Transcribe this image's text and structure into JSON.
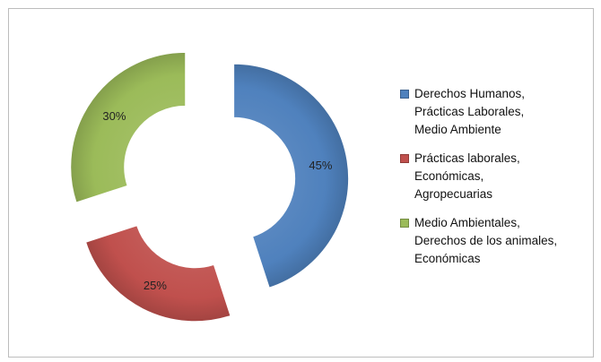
{
  "chart_data": {
    "type": "pie",
    "variant": "exploded-doughnut",
    "legend_position": "right",
    "slices": [
      {
        "label_lines": [
          "Derechos Humanos,",
          "Prácticas Laborales,",
          "Medio Ambiente"
        ],
        "value": 45,
        "value_label": "45%",
        "color": "#4F81BD"
      },
      {
        "label_lines": [
          "Prácticas laborales,",
          "Económicas,",
          "Agropecuarias"
        ],
        "value": 25,
        "value_label": "25%",
        "color": "#C0504D"
      },
      {
        "label_lines": [
          "Medio Ambientales,",
          "Derechos de los animales,",
          "Económicas"
        ],
        "value": 30,
        "value_label": "30%",
        "color": "#9BBB59"
      }
    ]
  }
}
